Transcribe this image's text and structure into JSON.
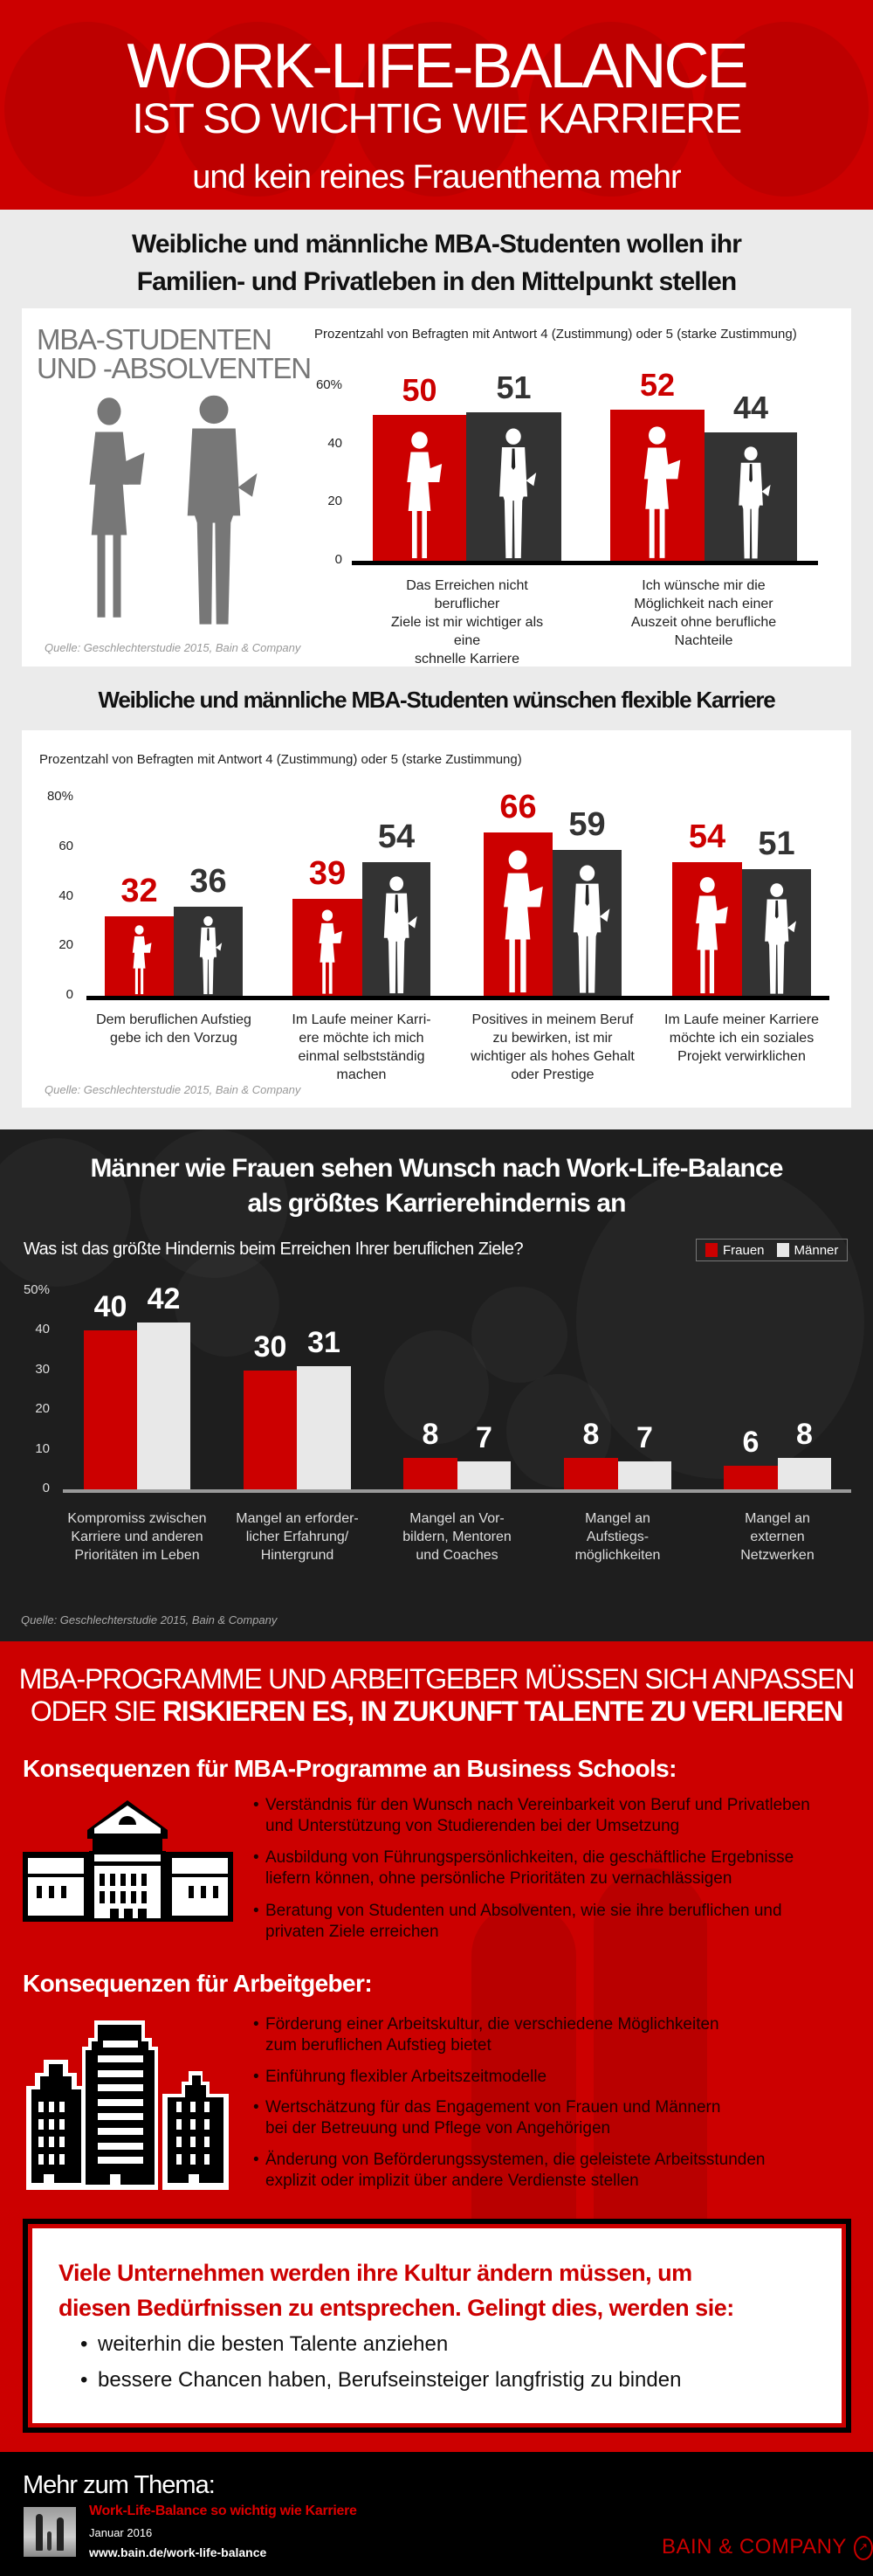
{
  "header": {
    "title": "WORK-LIFE-BALANCE",
    "title_line2": "IST SO WICHTIG WIE KARRIERE",
    "subtitle": "und kein reines Frauenthema mehr"
  },
  "section1": {
    "heading_line1": "Weibliche und männliche MBA-Studenten wollen ihr",
    "heading_line2": "Familien- und Privatleben in den Mittelpunkt stellen",
    "card_label_line1": "MBA-STUDENTEN",
    "card_label_line2": "UND -ABSOLVENTEN",
    "source": "Quelle: Geschlechterstudie 2015, Bain & Company"
  },
  "section2": {
    "heading": "Weibliche und männliche MBA-Studenten wünschen flexible Karriere",
    "source": "Quelle: Geschlechterstudie 2015, Bain & Company"
  },
  "section3": {
    "heading_line1": "Männer wie Frauen sehen Wunsch nach Work-Life-Balance",
    "heading_line2": "als größtes Karrierehindernis an",
    "source": "Quelle: Geschlechterstudie 2015, Bain & Company"
  },
  "chart_data": [
    {
      "type": "bar",
      "subtitle": "Prozentzahl von Befragten mit Antwort 4 (Zustimmung) oder 5 (starke Zustimmung)",
      "ylim": [
        0,
        60
      ],
      "y_ticks": [
        "60%",
        "40",
        "20",
        "0"
      ],
      "y_tick_values": [
        60,
        40,
        20,
        0
      ],
      "grid": false,
      "categories": [
        "Das Erreichen nicht beruflicher\nZiele ist mir wichtiger als eine\nschnelle Karriere",
        "Ich wünsche mir die\nMöglichkeit nach einer\nAuszeit ohne berufliche\nNachteile"
      ],
      "series": [
        {
          "values": [
            50,
            52
          ],
          "color": "#cc0000",
          "icon": "woman-silhouette"
        },
        {
          "values": [
            51,
            44
          ],
          "color": "#333333",
          "icon": "man-silhouette"
        }
      ]
    },
    {
      "type": "bar",
      "subtitle": "Prozentzahl von Befragten mit Antwort 4 (Zustimmung) oder 5 (starke Zustimmung)",
      "ylim": [
        0,
        80
      ],
      "y_ticks": [
        "80%",
        "60",
        "40",
        "20",
        "0"
      ],
      "y_tick_values": [
        80,
        60,
        40,
        20,
        0
      ],
      "grid": false,
      "categories": [
        "Dem beruflichen Aufstieg\ngebe ich den Vorzug",
        "Im Laufe meiner Karri-\nere möchte ich mich\neinmal selbstständig\nmachen",
        "Positives in meinem Beruf\nzu bewirken, ist mir\nwichtiger als hohes Gehalt\noder Prestige",
        "Im Laufe meiner Karriere\nmöchte ich ein soziales\nProjekt verwirklichen"
      ],
      "series": [
        {
          "values": [
            32,
            39,
            66,
            54
          ],
          "color": "#cc0000",
          "icon": "woman-silhouette"
        },
        {
          "values": [
            36,
            54,
            59,
            51
          ],
          "color": "#333333",
          "icon": "man-silhouette"
        }
      ]
    },
    {
      "type": "bar",
      "subtitle": "Was ist das größte Hindernis beim Erreichen Ihrer beruflichen Ziele?",
      "ylim": [
        0,
        50
      ],
      "y_ticks": [
        "50%",
        "40",
        "30",
        "20",
        "10",
        "0"
      ],
      "y_tick_values": [
        50,
        40,
        30,
        20,
        10,
        0
      ],
      "grid": false,
      "legend_position": "top-right",
      "categories": [
        "Kompromiss zwischen\nKarriere und anderen\nPrioritäten im Leben",
        "Mangel an erforder-\nlicher Erfahrung/\nHintergrund",
        "Mangel an Vor-\nbildern, Mentoren\nund Coaches",
        "Mangel an\nAufstiegs-\nmöglichkeiten",
        "Mangel an\nexternen\nNetzwerken"
      ],
      "series": [
        {
          "name": "Frauen",
          "values": [
            40,
            30,
            8,
            8,
            6
          ],
          "color": "#cc0000"
        },
        {
          "name": "Männer",
          "values": [
            42,
            31,
            7,
            7,
            8
          ],
          "color": "#e8e8e8"
        }
      ]
    }
  ],
  "section4": {
    "heading_line1": "MBA-PROGRAMME UND ARBEITGEBER MÜSSEN SICH ANPASSEN",
    "heading_line2_regular": "ODER SIE ",
    "heading_line2_bold": "RISKIEREN ES, IN ZUKUNFT TALENTE ZU VERLIEREN",
    "schools_heading": "Konsequenzen für MBA-Programme an Business Schools:",
    "schools_bullets": [
      "Verständnis für den Wunsch nach Vereinbarkeit von Beruf und Privatleben\nund Unterstützung von Studierenden bei der Umsetzung",
      "Ausbildung von Führungspersönlichkeiten, die geschäftliche Ergebnisse\nliefern können, ohne persönliche Prioritäten zu vernachlässigen",
      "Beratung von Studenten und Absolventen, wie sie ihre beruflichen und\nprivaten Ziele erreichen"
    ],
    "employers_heading": "Konsequenzen für Arbeitgeber:",
    "employers_bullets": [
      "Förderung einer Arbeitskultur, die verschiedene Möglichkeiten\nzum beruflichen Aufstieg bietet",
      "Einführung flexibler Arbeitszeitmodelle",
      "Wertschätzung für das Engagement von Frauen und Männern\nbei der Betreuung und Pflege von Angehörigen",
      "Änderung von Beförderungssystemen, die geleistete Arbeitsstunden\nexplizit oder implizit über andere Verdienste stellen"
    ]
  },
  "callout": {
    "heading_line1": "Viele Unternehmen werden ihre Kultur ändern müssen, um",
    "heading_line2": "diesen Bedürfnissen zu entsprechen. Gelingt dies, werden sie:",
    "bullets": [
      "weiterhin die besten Talente anziehen",
      "bessere Chancen haben, Berufseinsteiger langfristig zu binden"
    ]
  },
  "footer": {
    "more_label": "Mehr zum Thema:",
    "article_title": "Work-Life-Balance so wichtig wie Karriere",
    "date": "Januar 2016",
    "url": "www.bain.de/work-life-balance",
    "logo_text": "BAIN & COMPANY"
  },
  "colors": {
    "brand_red": "#cc0000",
    "dark_bar": "#333333",
    "light_bar": "#e8e8e8",
    "dark_bg": "#1e1e1e"
  }
}
